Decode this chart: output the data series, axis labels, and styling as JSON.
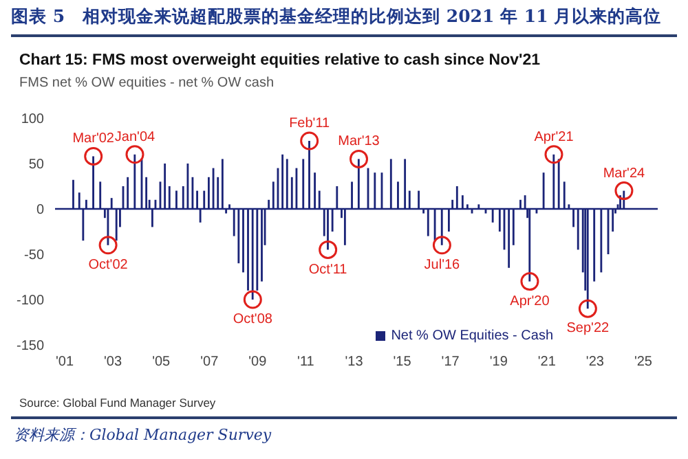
{
  "chart_data": {
    "type": "bar",
    "title": "图表 5　相对现金来说超配股票的基金经理的比例达到 2021 年 11 月以来的高位",
    "subtitle": "Chart 15: FMS most overweight equities relative to cash since Nov'21",
    "ylabel": "FMS net % OW equities - net % OW cash",
    "x": [
      2001.23,
      2001.36,
      2001.61,
      2001.77,
      2001.9,
      2002.19,
      2002.48,
      2002.67,
      2002.8,
      2002.95,
      2003.15,
      2003.3,
      2003.43,
      2003.62,
      2003.91,
      2004.2,
      2004.39,
      2004.52,
      2004.64,
      2004.77,
      2004.97,
      2005.16,
      2005.35,
      2005.64,
      2005.92,
      2006.11,
      2006.31,
      2006.5,
      2006.63,
      2006.79,
      2006.98,
      2007.17,
      2007.36,
      2007.55,
      2007.7,
      2007.84,
      2008.03,
      2008.22,
      2008.41,
      2008.61,
      2008.8,
      2008.99,
      2009.18,
      2009.31,
      2009.47,
      2009.66,
      2009.85,
      2010.04,
      2010.23,
      2010.43,
      2010.62,
      2010.9,
      2011.15,
      2011.38,
      2011.57,
      2011.77,
      2011.92,
      2012.11,
      2012.3,
      2012.49,
      2012.63,
      2012.92,
      2013.2,
      2013.59,
      2013.87,
      2014.16,
      2014.54,
      2014.83,
      2015.12,
      2015.31,
      2015.5,
      2015.69,
      2015.89,
      2016.08,
      2016.36,
      2016.65,
      2016.94,
      2017.09,
      2017.28,
      2017.51,
      2017.71,
      2017.9,
      2018.18,
      2018.47,
      2018.76,
      2019.05,
      2019.24,
      2019.43,
      2019.62,
      2019.91,
      2020.1,
      2020.2,
      2020.29,
      2020.58,
      2020.87,
      2021.29,
      2021.5,
      2021.73,
      2021.92,
      2022.11,
      2022.3,
      2022.5,
      2022.6,
      2022.7,
      2022.97,
      2023.26,
      2023.55,
      2023.74,
      2023.85,
      2023.95,
      2024.05,
      2024.2
    ],
    "series": [
      {
        "name": "Net % OW Equities - Cash",
        "color": "#1b2478",
        "values": [
          0,
          32,
          18,
          -35,
          10,
          58,
          30,
          -10,
          -40,
          12,
          -35,
          -20,
          25,
          35,
          60,
          55,
          35,
          10,
          -20,
          10,
          30,
          50,
          25,
          20,
          25,
          50,
          35,
          20,
          -15,
          20,
          35,
          45,
          35,
          55,
          -5,
          5,
          -30,
          -60,
          -70,
          -90,
          -100,
          -90,
          -80,
          -40,
          10,
          30,
          45,
          60,
          55,
          35,
          45,
          55,
          75,
          40,
          20,
          -30,
          -45,
          -25,
          25,
          -10,
          -40,
          30,
          55,
          45,
          40,
          40,
          55,
          30,
          55,
          20,
          0,
          20,
          -5,
          -30,
          -35,
          -40,
          -25,
          10,
          25,
          15,
          5,
          -5,
          5,
          -5,
          -15,
          -25,
          -45,
          -65,
          -40,
          10,
          15,
          -10,
          -80,
          -5,
          40,
          60,
          55,
          30,
          5,
          -20,
          -45,
          -70,
          -90,
          -110,
          -80,
          -70,
          -50,
          -25,
          -5,
          5,
          15,
          20
        ]
      }
    ],
    "xlim": [
      2000.6,
      2025.6
    ],
    "xticks": [
      {
        "value": 2001,
        "label": "'01"
      },
      {
        "value": 2003,
        "label": "'03"
      },
      {
        "value": 2005,
        "label": "'05"
      },
      {
        "value": 2007,
        "label": "'07"
      },
      {
        "value": 2009,
        "label": "'09"
      },
      {
        "value": 2011,
        "label": "'11"
      },
      {
        "value": 2013,
        "label": "'13"
      },
      {
        "value": 2015,
        "label": "'15"
      },
      {
        "value": 2017,
        "label": "'17"
      },
      {
        "value": 2019,
        "label": "'19"
      },
      {
        "value": 2021,
        "label": "'21"
      },
      {
        "value": 2023,
        "label": "'23"
      },
      {
        "value": 2025,
        "label": "'25"
      }
    ],
    "ylim": [
      -150,
      100
    ],
    "yticks": [
      -150,
      -100,
      -50,
      0,
      50,
      100
    ],
    "grid": false,
    "ref_lines": [
      {
        "axis": "y",
        "value": 0,
        "color": "#1b2478"
      }
    ],
    "legend": "bottom right",
    "annotations": [
      {
        "text": "Mar'02",
        "x": 2002.19,
        "y": 58
      },
      {
        "text": "Oct'02",
        "x": 2002.8,
        "y": -40
      },
      {
        "text": "Jan'04",
        "x": 2003.91,
        "y": 60
      },
      {
        "text": "Oct'08",
        "x": 2008.8,
        "y": -100
      },
      {
        "text": "Feb'11",
        "x": 2011.15,
        "y": 75
      },
      {
        "text": "Oct'11",
        "x": 2011.92,
        "y": -45
      },
      {
        "text": "Mar'13",
        "x": 2013.2,
        "y": 55
      },
      {
        "text": "Jul'16",
        "x": 2016.65,
        "y": -40
      },
      {
        "text": "Apr'20",
        "x": 2020.29,
        "y": -80
      },
      {
        "text": "Apr'21",
        "x": 2021.29,
        "y": 60
      },
      {
        "text": "Sep'22",
        "x": 2022.7,
        "y": -110
      },
      {
        "text": "Mar'24",
        "x": 2024.2,
        "y": 20
      },
      "Source: Global Fund Manager Survey",
      "资料来源：Global Manager Survey"
    ]
  }
}
